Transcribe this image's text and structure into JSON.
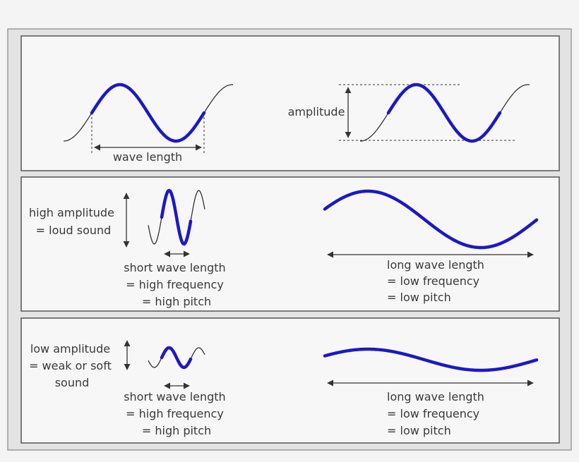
{
  "colors": {
    "background": "#f4f4f4",
    "frame_fill": "#e3e3e3",
    "frame_border": "#9a9a9a",
    "panel_fill": "#f7f7f7",
    "panel_border": "#555555",
    "wave_thin": "#333333",
    "wave_highlight": "#1c18c8",
    "text": "#3a3a3a"
  },
  "top_panel": {
    "wavelength_label": "wave length",
    "amplitude_label": "amplitude"
  },
  "middle_panel": {
    "left_lines": [
      "high amplitude",
      "= loud sound"
    ],
    "left_caption": [
      "short wave length",
      "= high frequency",
      "= high pitch"
    ],
    "right_caption": [
      "long wave length",
      "= low frequency",
      "= low pitch"
    ]
  },
  "bottom_panel": {
    "left_lines": [
      "low amplitude",
      "= weak or soft",
      "sound"
    ],
    "left_caption": [
      "short wave length",
      "= high frequency",
      "= high pitch"
    ],
    "right_caption": [
      "long wave length",
      "= low frequency",
      "= low pitch"
    ]
  }
}
